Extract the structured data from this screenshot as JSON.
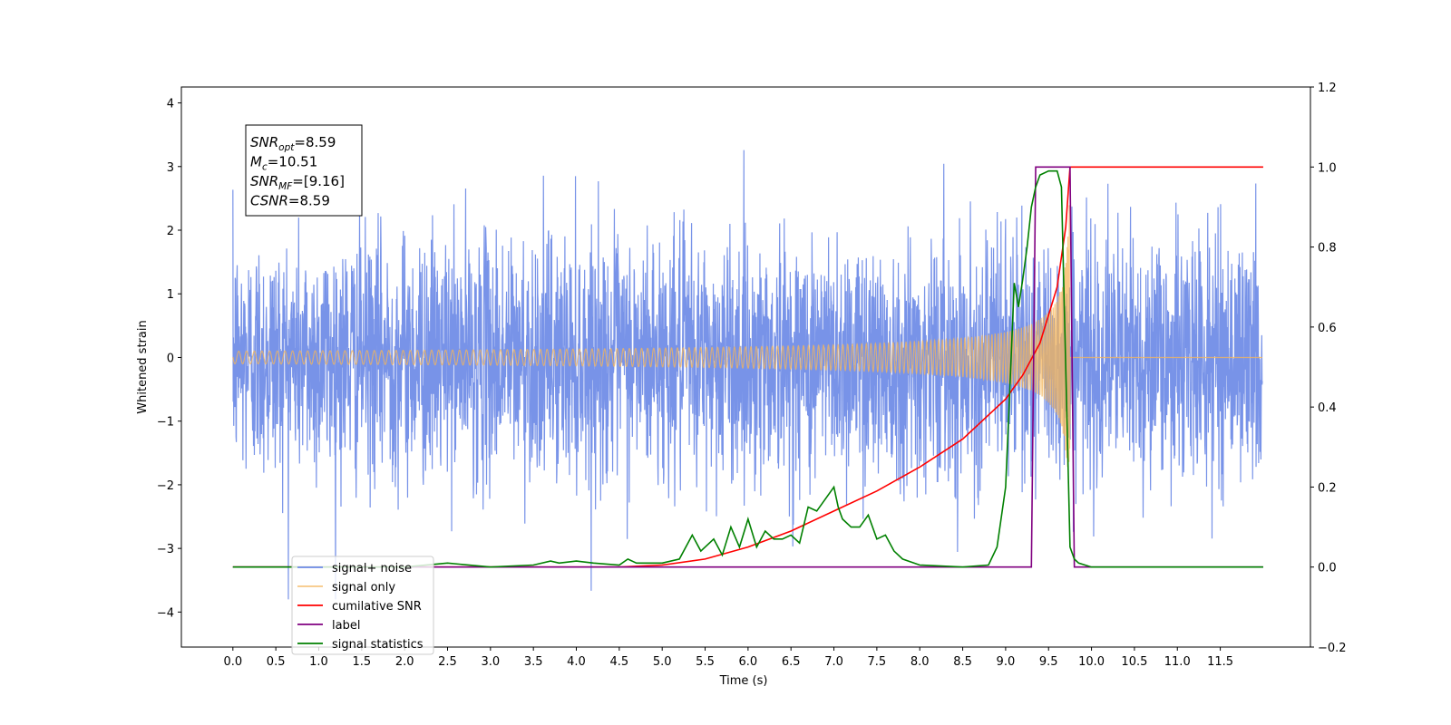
{
  "chart_data": {
    "type": "line",
    "xlabel": "Time (s)",
    "ylabel": "Whitened strain",
    "xlim": [
      -0.6,
      12.55
    ],
    "ylim": [
      -4.55,
      4.25
    ],
    "ylim_right": [
      -0.2,
      1.2
    ],
    "grid": false,
    "legend_location": "lower-left",
    "x_ticks": [
      "0.0",
      "0.5",
      "1.0",
      "1.5",
      "2.0",
      "2.5",
      "3.0",
      "3.5",
      "4.0",
      "4.5",
      "5.0",
      "5.5",
      "6.0",
      "6.5",
      "7.0",
      "7.5",
      "8.0",
      "8.5",
      "9.0",
      "9.5",
      "10.0",
      "10.5",
      "11.0",
      "11.5"
    ],
    "y_ticks_left": [
      "4",
      "3",
      "2",
      "1",
      "0",
      "−1",
      "−2",
      "−3",
      "−4"
    ],
    "y_ticks_right": [
      "1.2",
      "1.0",
      "0.8",
      "0.6",
      "0.4",
      "0.2",
      "0.0",
      "−0.2"
    ],
    "info_box": [
      {
        "name": "SNR",
        "sub": "opt",
        "value": "=8.59"
      },
      {
        "name": "M",
        "sub": "c",
        "value": "=10.51"
      },
      {
        "name": "SNR",
        "sub": "MF",
        "value": "=[9.16]"
      },
      {
        "name": "CSNR",
        "sub": "",
        "value": "=8.59"
      }
    ],
    "series": [
      {
        "name": "signal+ noise",
        "color": "#6d8ae6",
        "axis": "left",
        "style": "noise",
        "x_range": [
          0,
          11.99
        ],
        "std": 0.95
      },
      {
        "name": "signal only",
        "color": "#f5b55a",
        "axis": "left",
        "style": "chirp",
        "x_range": [
          0,
          11.99
        ],
        "merger_time": 9.75,
        "peak_amplitude": 3.0
      },
      {
        "name": "cumilative SNR",
        "color": "#ff0000",
        "axis": "right",
        "x": [
          0,
          4.5,
          5.0,
          5.5,
          6.0,
          6.5,
          7.0,
          7.5,
          8.0,
          8.5,
          9.0,
          9.2,
          9.4,
          9.6,
          9.7,
          9.75,
          12.0
        ],
        "values": [
          0.0,
          0.0,
          0.005,
          0.02,
          0.05,
          0.09,
          0.14,
          0.19,
          0.25,
          0.32,
          0.42,
          0.48,
          0.56,
          0.7,
          0.85,
          1.0,
          1.0
        ]
      },
      {
        "name": "label",
        "color": "#800080",
        "axis": "right",
        "x": [
          0,
          9.3,
          9.35,
          9.75,
          9.8,
          12.0
        ],
        "values": [
          0,
          0,
          1,
          1,
          0,
          0
        ]
      },
      {
        "name": "signal statistics",
        "color": "#008000",
        "axis": "right",
        "x": [
          0,
          2.0,
          2.5,
          3.0,
          3.5,
          3.7,
          3.8,
          4.0,
          4.2,
          4.5,
          4.6,
          4.7,
          5.0,
          5.2,
          5.35,
          5.45,
          5.6,
          5.7,
          5.8,
          5.9,
          6.0,
          6.1,
          6.2,
          6.3,
          6.4,
          6.5,
          6.6,
          6.7,
          6.8,
          6.9,
          7.0,
          7.05,
          7.1,
          7.2,
          7.3,
          7.4,
          7.5,
          7.6,
          7.7,
          7.8,
          8.0,
          8.5,
          8.8,
          8.9,
          9.0,
          9.05,
          9.1,
          9.15,
          9.2,
          9.25,
          9.3,
          9.35,
          9.4,
          9.5,
          9.6,
          9.65,
          9.7,
          9.75,
          9.8,
          9.85,
          10.0,
          12.0
        ],
        "values": [
          0.0,
          0.0,
          0.01,
          0.0,
          0.005,
          0.015,
          0.01,
          0.015,
          0.01,
          0.005,
          0.02,
          0.01,
          0.01,
          0.02,
          0.08,
          0.04,
          0.07,
          0.03,
          0.1,
          0.05,
          0.12,
          0.05,
          0.09,
          0.07,
          0.07,
          0.08,
          0.06,
          0.15,
          0.14,
          0.17,
          0.2,
          0.15,
          0.12,
          0.1,
          0.1,
          0.13,
          0.07,
          0.08,
          0.04,
          0.02,
          0.005,
          0.0,
          0.005,
          0.05,
          0.2,
          0.45,
          0.71,
          0.65,
          0.72,
          0.8,
          0.9,
          0.95,
          0.98,
          0.99,
          0.99,
          0.95,
          0.5,
          0.05,
          0.02,
          0.01,
          0.0,
          0.0
        ]
      }
    ]
  }
}
